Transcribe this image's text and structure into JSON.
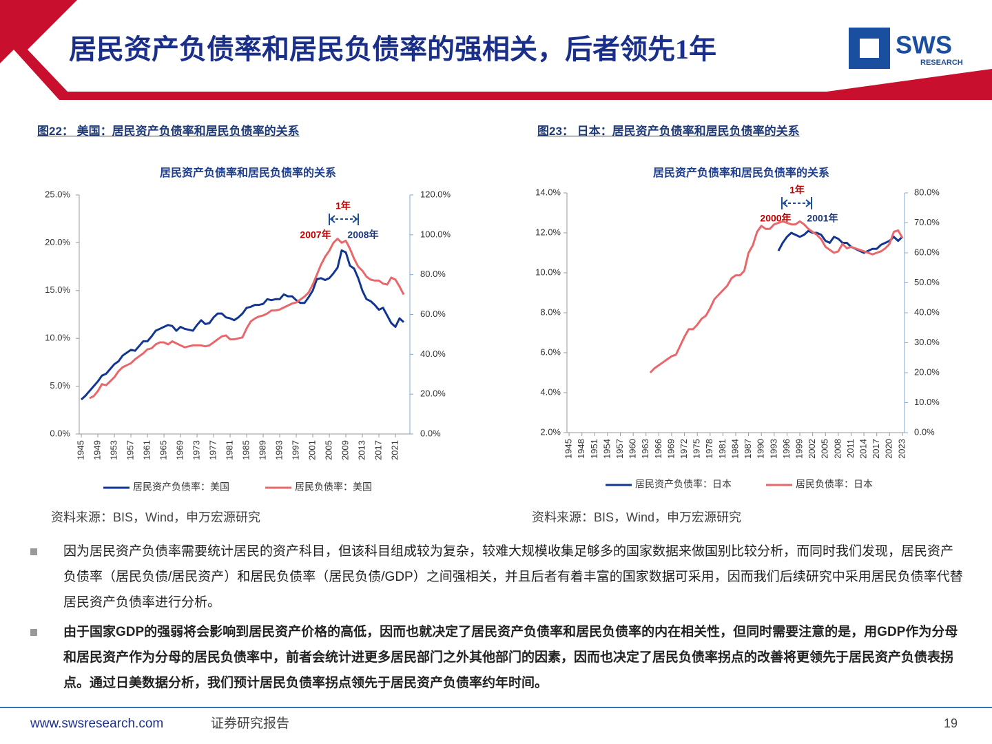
{
  "header": {
    "title": "居民资产负债率和居民负债率的强相关，后者领先1年",
    "logo": "SWS",
    "logo_sub": "RESEARCH"
  },
  "captions": [
    "图22： 美国：居民资产负债率和居民负债率的关系",
    "图23： 日本：居民资产负债率和居民负债率的关系"
  ],
  "sources": [
    "资料来源：BIS，Wind，申万宏源研究",
    "资料来源：BIS，Wind，申万宏源研究"
  ],
  "chart_data": [
    {
      "type": "line",
      "title": "居民资产负债率和居民负债率的关系",
      "x": [
        1945,
        1946,
        1947,
        1948,
        1949,
        1950,
        1951,
        1952,
        1953,
        1954,
        1955,
        1956,
        1957,
        1958,
        1959,
        1960,
        1961,
        1962,
        1963,
        1964,
        1965,
        1966,
        1967,
        1968,
        1969,
        1970,
        1971,
        1972,
        1973,
        1974,
        1975,
        1976,
        1977,
        1978,
        1979,
        1980,
        1981,
        1982,
        1983,
        1984,
        1985,
        1986,
        1987,
        1988,
        1989,
        1990,
        1991,
        1992,
        1993,
        1994,
        1995,
        1996,
        1997,
        1998,
        1999,
        2000,
        2001,
        2002,
        2003,
        2004,
        2005,
        2006,
        2007,
        2008,
        2009,
        2010,
        2011,
        2012,
        2013,
        2014,
        2015,
        2016,
        2017,
        2018,
        2019,
        2020,
        2021,
        2022,
        2023
      ],
      "xlim": [
        1944.5,
        2024.5
      ],
      "xticks": [
        1945,
        1949,
        1953,
        1957,
        1961,
        1965,
        1969,
        1973,
        1977,
        1981,
        1985,
        1989,
        1993,
        1997,
        2001,
        2005,
        2009,
        2013,
        2017,
        2021
      ],
      "ylim": [
        0,
        25
      ],
      "yticks": [
        {
          "value": 0,
          "label": "0.0%"
        },
        {
          "value": 5,
          "label": "5.0%"
        },
        {
          "value": 10,
          "label": "10.0%"
        },
        {
          "value": 15,
          "label": "15.0%"
        },
        {
          "value": 20,
          "label": "20.0%"
        },
        {
          "value": 25,
          "label": "25.0%"
        }
      ],
      "y2lim": [
        0,
        120
      ],
      "y2ticks": [
        {
          "value": 0,
          "label": "0.0%"
        },
        {
          "value": 20,
          "label": "20.0%"
        },
        {
          "value": 40,
          "label": "40.0%"
        },
        {
          "value": 60,
          "label": "60.0%"
        },
        {
          "value": 80,
          "label": "80.0%"
        },
        {
          "value": 100,
          "label": "100.0%"
        },
        {
          "value": 120,
          "label": "120.0%"
        }
      ],
      "series": [
        {
          "name": "居民资产负债率：美国",
          "color": "#123591",
          "values": [
            3.6,
            4.0,
            4.5,
            5.0,
            5.5,
            6.1,
            6.3,
            6.8,
            7.3,
            7.6,
            8.2,
            8.5,
            8.8,
            8.7,
            9.2,
            9.7,
            9.7,
            10.2,
            10.8,
            11.0,
            11.2,
            11.4,
            11.3,
            10.8,
            11.2,
            11.0,
            10.9,
            10.8,
            11.4,
            11.9,
            11.5,
            11.6,
            12.2,
            12.6,
            12.6,
            12.2,
            12.1,
            11.9,
            12.2,
            12.6,
            13.2,
            13.3,
            13.5,
            13.5,
            13.6,
            14.1,
            14.0,
            14.1,
            14.1,
            14.6,
            14.4,
            14.4,
            14.0,
            13.7,
            13.7,
            14.3,
            15.0,
            16.2,
            16.3,
            16.1,
            16.3,
            16.8,
            17.4,
            19.2,
            19.0,
            17.6,
            17.3,
            16.3,
            15.0,
            14.1,
            13.9,
            13.5,
            13.0,
            13.2,
            12.4,
            11.6,
            11.2,
            12.1,
            11.7
          ]
        },
        {
          "name": "居民负债率：美国",
          "color": "#e8676b",
          "axis": "y2",
          "values": [
            null,
            null,
            18,
            19,
            21.5,
            25,
            24.5,
            26.5,
            28.5,
            31.5,
            33.5,
            34.5,
            35.5,
            37.5,
            39,
            40.5,
            42.5,
            43,
            45,
            46,
            46,
            45,
            46.5,
            45.5,
            44.5,
            43.5,
            44,
            44.5,
            44.5,
            44.5,
            44,
            44.5,
            46,
            47.5,
            49,
            49.5,
            47.5,
            47.5,
            48,
            48.5,
            53,
            56.5,
            58,
            59,
            59.5,
            60.5,
            62,
            62,
            62.5,
            63.5,
            64.5,
            65.5,
            66,
            67.5,
            69,
            71,
            75,
            80,
            85,
            89,
            92,
            96,
            98,
            96,
            97,
            93,
            88,
            84,
            82,
            79,
            77.5,
            77,
            77,
            75.5,
            75,
            78.5,
            77.5,
            74,
            70
          ]
        }
      ],
      "annotations": [
        "1年",
        "2007年",
        "2008年"
      ]
    },
    {
      "type": "line",
      "title": "居民资产负债率和居民负债率的关系",
      "x": [
        1945,
        1946,
        1947,
        1948,
        1949,
        1950,
        1951,
        1952,
        1953,
        1954,
        1955,
        1956,
        1957,
        1958,
        1959,
        1960,
        1961,
        1962,
        1963,
        1964,
        1965,
        1966,
        1967,
        1968,
        1969,
        1970,
        1971,
        1972,
        1973,
        1974,
        1975,
        1976,
        1977,
        1978,
        1979,
        1980,
        1981,
        1982,
        1983,
        1984,
        1985,
        1986,
        1987,
        1988,
        1989,
        1990,
        1991,
        1992,
        1993,
        1994,
        1995,
        1996,
        1997,
        1998,
        1999,
        2000,
        2001,
        2002,
        2003,
        2004,
        2005,
        2006,
        2007,
        2008,
        2009,
        2010,
        2011,
        2012,
        2013,
        2014,
        2015,
        2016,
        2017,
        2018,
        2019,
        2020,
        2021,
        2022,
        2023
      ],
      "xlim": [
        1944.5,
        2023.5
      ],
      "xticks": [
        1945,
        1948,
        1951,
        1954,
        1957,
        1960,
        1963,
        1966,
        1969,
        1972,
        1975,
        1978,
        1981,
        1984,
        1987,
        1990,
        1993,
        1996,
        1999,
        2002,
        2005,
        2008,
        2011,
        2014,
        2017,
        2020,
        2023
      ],
      "ylim": [
        2,
        14
      ],
      "yticks": [
        {
          "value": 2,
          "label": "2.0%"
        },
        {
          "value": 4,
          "label": "4.0%"
        },
        {
          "value": 6,
          "label": "6.0%"
        },
        {
          "value": 8,
          "label": "8.0%"
        },
        {
          "value": 10,
          "label": "10.0%"
        },
        {
          "value": 12,
          "label": "12.0%"
        },
        {
          "value": 14,
          "label": "14.0%"
        }
      ],
      "y2lim": [
        0,
        80
      ],
      "y2ticks": [
        {
          "value": 0,
          "label": "0.0%"
        },
        {
          "value": 10,
          "label": "10.0%"
        },
        {
          "value": 20,
          "label": "20.0%"
        },
        {
          "value": 30,
          "label": "30.0%"
        },
        {
          "value": 40,
          "label": "40.0%"
        },
        {
          "value": 50,
          "label": "50.0%"
        },
        {
          "value": 60,
          "label": "60.0%"
        },
        {
          "value": 70,
          "label": "70.0%"
        },
        {
          "value": 80,
          "label": "80.0%"
        }
      ],
      "series": [
        {
          "name": "居民资产负债率：日本",
          "color": "#123591",
          "values": [
            null,
            null,
            null,
            null,
            null,
            null,
            null,
            null,
            null,
            null,
            null,
            null,
            null,
            null,
            null,
            null,
            null,
            null,
            null,
            null,
            null,
            null,
            null,
            null,
            null,
            null,
            null,
            null,
            null,
            null,
            null,
            null,
            null,
            null,
            null,
            null,
            null,
            null,
            null,
            null,
            null,
            null,
            null,
            null,
            null,
            null,
            null,
            null,
            null,
            11.1,
            11.5,
            11.8,
            12.0,
            11.9,
            11.8,
            11.9,
            12.1,
            12.0,
            12.0,
            11.9,
            11.6,
            11.5,
            11.8,
            11.7,
            11.5,
            11.5,
            11.3,
            11.2,
            11.1,
            11.0,
            11.1,
            11.2,
            11.2,
            11.4,
            11.5,
            11.6,
            11.8,
            11.6,
            11.8
          ]
        },
        {
          "name": "居民负债率：日本",
          "color": "#e8676b",
          "axis": "y2",
          "values": [
            null,
            null,
            null,
            null,
            null,
            null,
            null,
            null,
            null,
            null,
            null,
            null,
            null,
            null,
            null,
            null,
            null,
            null,
            null,
            20,
            21.5,
            22.5,
            23.5,
            24.5,
            25.5,
            26,
            29,
            32,
            34.5,
            34.5,
            36,
            38,
            39,
            41.5,
            44.5,
            46,
            47.5,
            49,
            51.5,
            52.5,
            52.5,
            54,
            60,
            62.5,
            67,
            69,
            68,
            68,
            69.5,
            70,
            70.5,
            70,
            69.5,
            69.5,
            70.5,
            69.5,
            68,
            67,
            66,
            64.5,
            62,
            61,
            60,
            60.5,
            63,
            61.5,
            62,
            61.5,
            61,
            60.5,
            60,
            59.5,
            60,
            60.5,
            61.5,
            63,
            67,
            67.5,
            65
          ]
        }
      ],
      "annotations": [
        "1年",
        "2000年",
        "2001年"
      ]
    }
  ],
  "bullets": [
    "因为居民资产负债率需要统计居民的资产科目，但该科目组成较为复杂，较难大规模收集足够多的国家数据来做国别比较分析，而同时我们发现，居民资产负债率（居民负债/居民资产）和居民负债率（居民负债/GDP）之间强相关，并且后者有着丰富的国家数据可采用，因而我们后续研究中采用居民负债率代替居民资产负债率进行分析。",
    "由于国家GDP的强弱将会影响到居民资产价格的高低，因而也就决定了居民资产负债率和居民负债率的内在相关性，但同时需要注意的是，用GDP作为分母和居民资产作为分母的居民负债率中，前者会统计进更多居民部门之外其他部门的因素，因而也决定了居民负债率拐点的改善将更领先于居民资产负债表拐点。通过日美数据分析，我们预计居民负债率拐点领先于居民资产负债率约年时间。"
  ],
  "footer": {
    "url": "www.swsresearch.com",
    "label": "证券研究报告",
    "page": "19"
  }
}
